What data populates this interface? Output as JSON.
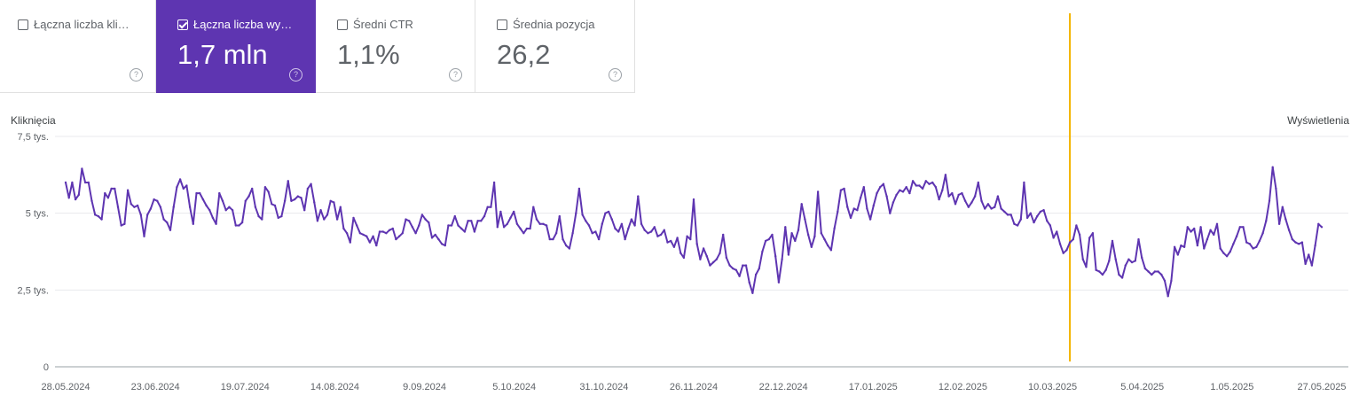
{
  "metrics": [
    {
      "label": "Łączna liczba klik…",
      "value": "",
      "checked": false
    },
    {
      "label": "Łączna liczba wy…",
      "value": "1,7 mln",
      "checked": true
    },
    {
      "label": "Średni CTR",
      "value": "1,1%",
      "checked": false
    },
    {
      "label": "Średnia pozycja",
      "value": "26,2",
      "checked": false
    }
  ],
  "help_glyph": "?",
  "colors": {
    "accent": "#5e35b1",
    "line": "#5e35b1",
    "marker": "#f4b400",
    "grid": "#e8eaed"
  },
  "chart_data": {
    "type": "line",
    "ylabel_left": "Kliknięcia",
    "ylabel_right": "Wyświetlenia",
    "y_ticks": [
      "0",
      "2,5 tys.",
      "5 tys.",
      "7,5 tys."
    ],
    "y_tick_values": [
      0,
      2500,
      5000,
      7500
    ],
    "ylim": [
      0,
      7500
    ],
    "x_tick_labels": [
      "28.05.2024",
      "23.06.2024",
      "19.07.2024",
      "14.08.2024",
      "9.09.2024",
      "5.10.2024",
      "31.10.2024",
      "26.11.2024",
      "22.12.2024",
      "17.01.2025",
      "12.02.2025",
      "10.03.2025",
      "5.04.2025",
      "1.05.2025",
      "27.05.2025"
    ],
    "annotation_index": 307,
    "series": [
      {
        "values": [
          6000,
          5500,
          6000,
          5450,
          5600,
          6450,
          6000,
          6000,
          5400,
          4950,
          4900,
          4800,
          5650,
          5500,
          5800,
          5800,
          5200,
          4600,
          4650,
          5750,
          5300,
          5200,
          5250,
          4950,
          4250,
          4950,
          5150,
          5450,
          5400,
          5200,
          4800,
          4700,
          4450,
          5200,
          5850,
          6100,
          5800,
          5900,
          5200,
          4650,
          5650,
          5650,
          5450,
          5250,
          5100,
          4850,
          4650,
          5650,
          5400,
          5100,
          5200,
          5100,
          4600,
          4600,
          4700,
          5400,
          5550,
          5800,
          5200,
          4900,
          4800,
          5850,
          5700,
          5300,
          5250,
          4850,
          4900,
          5400,
          6050,
          5400,
          5450,
          5550,
          5500,
          5100,
          5800,
          5950,
          5350,
          4750,
          5100,
          4800,
          4950,
          5400,
          5350,
          4800,
          5200,
          4500,
          4350,
          4050,
          4850,
          4600,
          4350,
          4300,
          4250,
          4050,
          4250,
          3950,
          4400,
          4400,
          4350,
          4450,
          4500,
          4150,
          4250,
          4350,
          4800,
          4750,
          4550,
          4350,
          4600,
          4950,
          4800,
          4700,
          4200,
          4300,
          4150,
          4000,
          3950,
          4600,
          4600,
          4900,
          4600,
          4500,
          4400,
          4750,
          4750,
          4400,
          4750,
          4750,
          4900,
          5200,
          5200,
          6000,
          4550,
          5050,
          4550,
          4650,
          4850,
          5050,
          4650,
          4500,
          4350,
          4500,
          4500,
          5200,
          4800,
          4650,
          4650,
          4600,
          4150,
          4150,
          4350,
          4900,
          4150,
          3950,
          3850,
          4350,
          5000,
          5800,
          4950,
          4750,
          4600,
          4350,
          4400,
          4150,
          4650,
          5000,
          5050,
          4800,
          4500,
          4400,
          4650,
          4150,
          4500,
          4800,
          4600,
          5550,
          4650,
          4450,
          4350,
          4400,
          4550,
          4250,
          4300,
          4450,
          4050,
          4100,
          3900,
          4200,
          3700,
          3550,
          4250,
          4150,
          5450,
          4000,
          3500,
          3850,
          3600,
          3300,
          3400,
          3500,
          3700,
          4300,
          3550,
          3300,
          3200,
          3150,
          2950,
          3300,
          3300,
          2750,
          2400,
          3000,
          3200,
          3750,
          4100,
          4150,
          4300,
          3600,
          2750,
          3500,
          4550,
          3650,
          4350,
          4100,
          4450,
          5300,
          4800,
          4300,
          3900,
          4250,
          5700,
          4350,
          4150,
          3950,
          3800,
          4500,
          5050,
          5750,
          5800,
          5200,
          4850,
          5150,
          5100,
          5500,
          5850,
          5150,
          4800,
          5250,
          5650,
          5850,
          5950,
          5550,
          5000,
          5350,
          5600,
          5750,
          5700,
          5850,
          5650,
          6050,
          5900,
          5900,
          5800,
          6050,
          5950,
          6000,
          5850,
          5450,
          5750,
          6250,
          5550,
          5650,
          5300,
          5600,
          5650,
          5400,
          5200,
          5350,
          5550,
          6000,
          5400,
          5150,
          5300,
          5150,
          5200,
          5550,
          5150,
          5050,
          4950,
          4950,
          4650,
          4600,
          4800,
          6000,
          4850,
          5000,
          4700,
          4900,
          5050,
          5100,
          4750,
          4600,
          4200,
          4400,
          4000,
          3700,
          3800,
          4050,
          4150,
          4600,
          4300,
          3500,
          3250,
          4200,
          4350,
          3150,
          3100,
          3000,
          3150,
          3450,
          4100,
          3500,
          3000,
          2900,
          3300,
          3500,
          3400,
          3450,
          4150,
          3550,
          3200,
          3100,
          3000,
          3100,
          3100,
          3000,
          2800,
          2300,
          2800,
          3900,
          3650,
          3950,
          3900,
          4550,
          4400,
          4500,
          3950,
          4550,
          3850,
          4150,
          4450,
          4300,
          4650,
          3850,
          3700,
          3600,
          3750,
          4000,
          4250,
          4550,
          4550,
          4050,
          4000,
          3850,
          3900,
          4100,
          4350,
          4750,
          5400,
          6500,
          5800,
          4650,
          5200,
          4800,
          4450,
          4150,
          4050,
          4000,
          4050,
          3350,
          3650,
          3300,
          3950,
          4650,
          4550
        ]
      }
    ]
  }
}
